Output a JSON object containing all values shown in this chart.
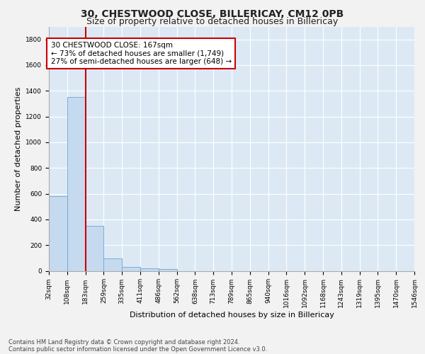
{
  "title": "30, CHESTWOOD CLOSE, BILLERICAY, CM12 0PB",
  "subtitle": "Size of property relative to detached houses in Billericay",
  "xlabel": "Distribution of detached houses by size in Billericay",
  "ylabel": "Number of detached properties",
  "footnote1": "Contains HM Land Registry data © Crown copyright and database right 2024.",
  "footnote2": "Contains public sector information licensed under the Open Government Licence v3.0.",
  "bin_labels": [
    "32sqm",
    "108sqm",
    "183sqm",
    "259sqm",
    "335sqm",
    "411sqm",
    "486sqm",
    "562sqm",
    "638sqm",
    "713sqm",
    "789sqm",
    "865sqm",
    "940sqm",
    "1016sqm",
    "1092sqm",
    "1168sqm",
    "1243sqm",
    "1319sqm",
    "1395sqm",
    "1470sqm",
    "1546sqm"
  ],
  "bar_values": [
    580,
    1350,
    350,
    95,
    30,
    20,
    15,
    0,
    0,
    0,
    0,
    0,
    0,
    0,
    0,
    0,
    0,
    0,
    0,
    0
  ],
  "bar_color": "#c5d9ef",
  "bar_edge_color": "#6ea6d0",
  "red_line_x": 2,
  "red_line_color": "#cc0000",
  "annotation_text": "30 CHESTWOOD CLOSE: 167sqm\n← 73% of detached houses are smaller (1,749)\n27% of semi-detached houses are larger (648) →",
  "annotation_box_color": "#ffffff",
  "annotation_box_edge": "#cc0000",
  "ylim": [
    0,
    1900
  ],
  "yticks": [
    0,
    200,
    400,
    600,
    800,
    1000,
    1200,
    1400,
    1600,
    1800
  ],
  "background_color": "#dce9f5",
  "grid_color": "#ffffff",
  "title_fontsize": 10,
  "subtitle_fontsize": 9,
  "axis_label_fontsize": 8,
  "tick_fontsize": 6.5,
  "annotation_fontsize": 7.5,
  "footnote_fontsize": 6
}
